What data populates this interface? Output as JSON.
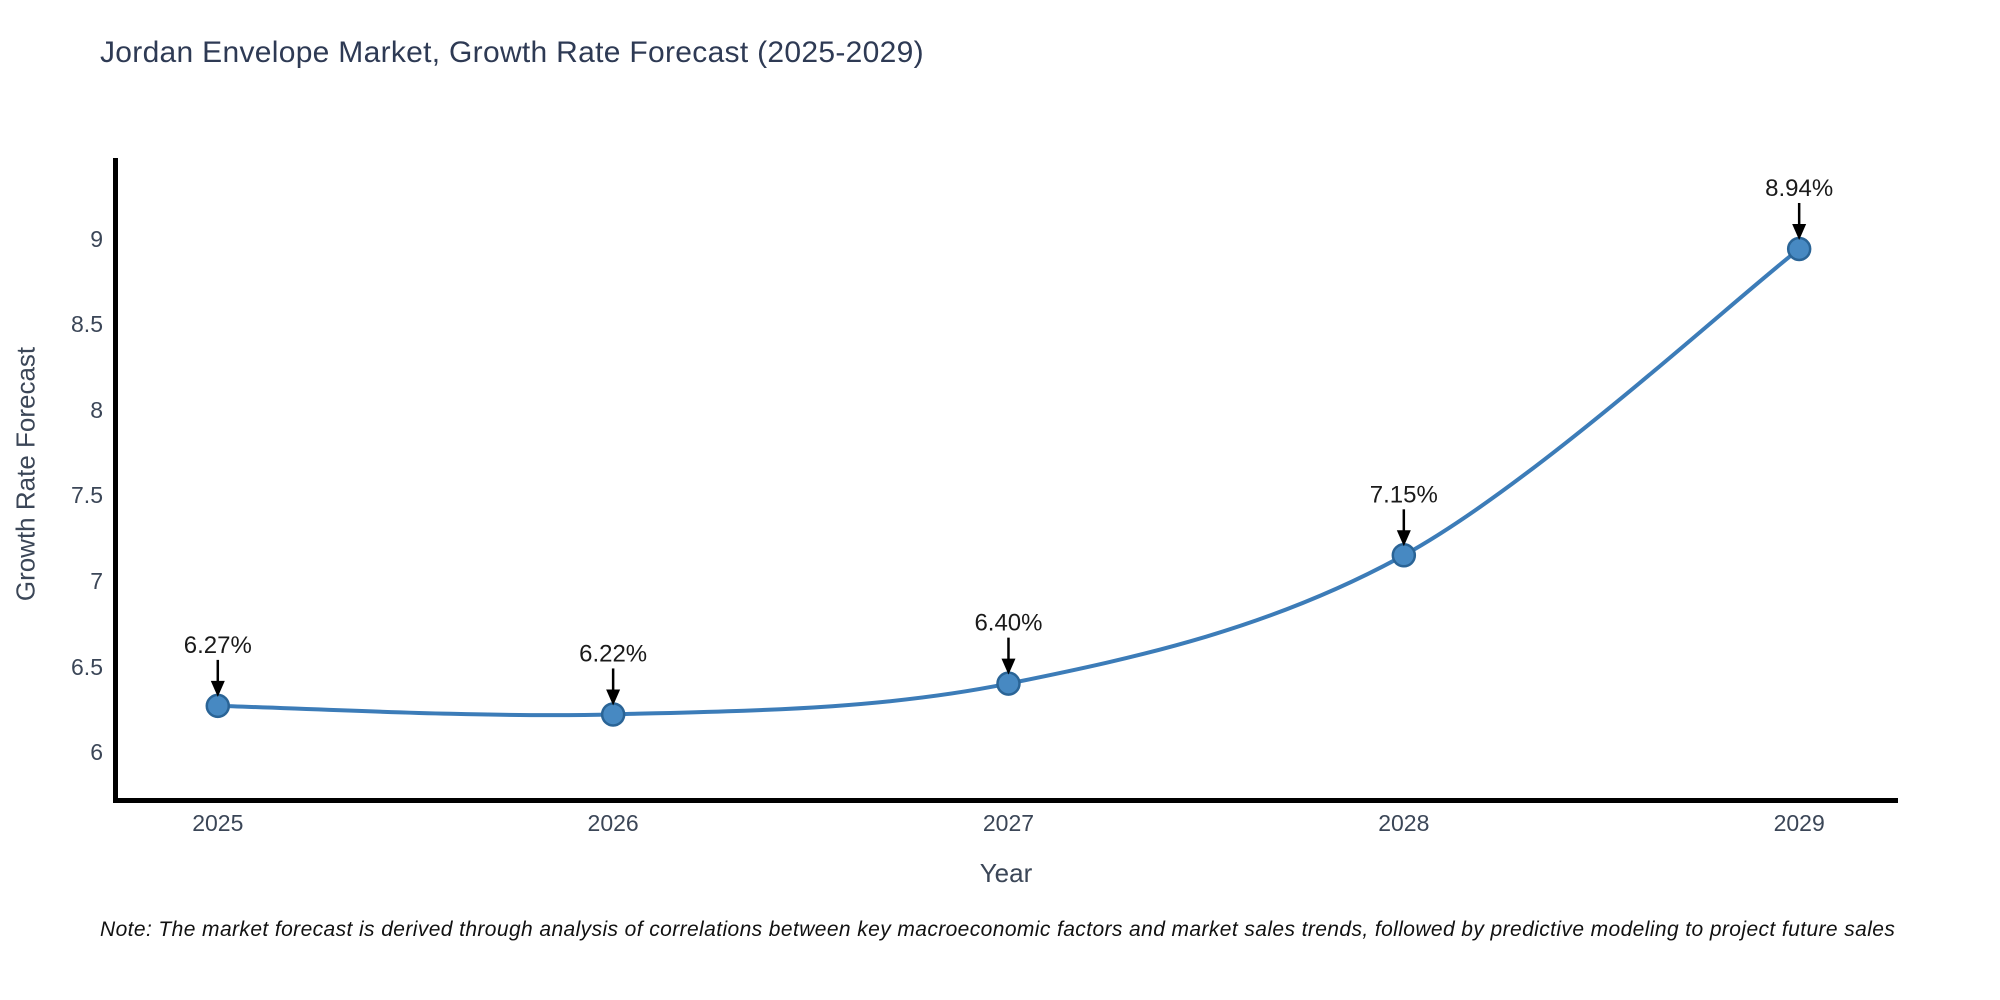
{
  "title": "Jordan Envelope Market, Growth Rate Forecast (2025-2029)",
  "footnote": "Note: The market forecast is derived through analysis of correlations between key macroeconomic factors and market sales trends, followed by predictive modeling to project future sales",
  "colors": {
    "title_text": "#2e3a54",
    "tick_text": "#3b4657",
    "axis_spine": "#000000",
    "line": "#3c7cb8",
    "marker_fill": "#4789c2",
    "marker_edge": "#2a6496",
    "annotation_text": "#1a1a1a",
    "annotation_arrow": "#000000",
    "background": "#ffffff"
  },
  "chart_data": {
    "type": "line",
    "title": "Jordan Envelope Market, Growth Rate Forecast (2025-2029)",
    "xlabel": "Year",
    "ylabel": "Growth Rate Forecast",
    "x": [
      2025,
      2026,
      2027,
      2028,
      2029
    ],
    "values": [
      6.27,
      6.22,
      6.4,
      7.15,
      8.94
    ],
    "point_labels": [
      "6.27%",
      "6.22%",
      "6.40%",
      "7.15%",
      "8.94%"
    ],
    "xtick_labels": [
      "2025",
      "2026",
      "2027",
      "2028",
      "2029"
    ],
    "yticks": [
      6,
      6.5,
      7,
      7.5,
      8,
      8.5,
      9
    ],
    "ytick_labels": [
      "6",
      "6.5",
      "7",
      "7.5",
      "8",
      "8.5",
      "9"
    ],
    "xlim": [
      2024.74,
      2029.25
    ],
    "ylim": [
      5.72,
      9.46
    ],
    "grid": false,
    "legend": false,
    "line_smooth": true,
    "annotations_have_arrows": true
  }
}
